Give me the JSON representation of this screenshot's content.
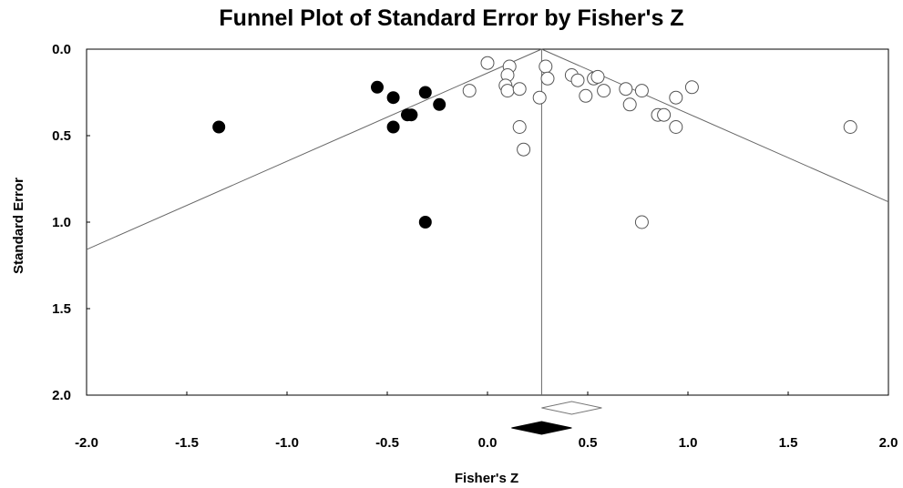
{
  "chart_data": {
    "type": "scatter",
    "title": "Funnel Plot of Standard Error by Fisher's Z",
    "xlabel": "Fisher's Z",
    "ylabel": "Standard Error",
    "xlim": [
      -2.0,
      2.0
    ],
    "ylim": [
      0.0,
      2.0
    ],
    "y_inverted": true,
    "x_ticks": [
      "-2.0",
      "-1.5",
      "-1.0",
      "-0.5",
      "0.0",
      "0.5",
      "1.0",
      "1.5",
      "2.0"
    ],
    "y_ticks": [
      "0.0",
      "0.5",
      "1.0",
      "1.5",
      "2.0"
    ],
    "grid": false,
    "pooled_effect": 0.27,
    "funnel_z": 1.96,
    "series": [
      {
        "marker": "open-circle",
        "points": [
          [
            0.0,
            0.08
          ],
          [
            -0.09,
            0.24
          ],
          [
            0.11,
            0.1
          ],
          [
            0.1,
            0.15
          ],
          [
            0.09,
            0.21
          ],
          [
            0.1,
            0.24
          ],
          [
            0.16,
            0.23
          ],
          [
            0.26,
            0.28
          ],
          [
            0.16,
            0.45
          ],
          [
            0.18,
            0.58
          ],
          [
            0.29,
            0.1
          ],
          [
            0.3,
            0.17
          ],
          [
            0.42,
            0.15
          ],
          [
            0.45,
            0.18
          ],
          [
            0.49,
            0.27
          ],
          [
            0.53,
            0.17
          ],
          [
            0.55,
            0.16
          ],
          [
            0.58,
            0.24
          ],
          [
            0.69,
            0.23
          ],
          [
            0.71,
            0.32
          ],
          [
            0.77,
            0.24
          ],
          [
            0.85,
            0.38
          ],
          [
            0.88,
            0.38
          ],
          [
            0.94,
            0.28
          ],
          [
            0.94,
            0.45
          ],
          [
            1.02,
            0.22
          ],
          [
            1.81,
            0.45
          ],
          [
            0.77,
            1.0
          ]
        ]
      },
      {
        "marker": "filled-circle",
        "points": [
          [
            -1.34,
            0.45
          ],
          [
            -0.55,
            0.22
          ],
          [
            -0.47,
            0.28
          ],
          [
            -0.31,
            0.25
          ],
          [
            -0.24,
            0.32
          ],
          [
            -0.4,
            0.38
          ],
          [
            -0.38,
            0.38
          ],
          [
            -0.47,
            0.45
          ],
          [
            -0.31,
            1.0
          ]
        ]
      }
    ],
    "summary_diamonds": [
      {
        "style": "open",
        "center": 0.42,
        "halfwidth": 0.15
      },
      {
        "style": "filled",
        "center": 0.27,
        "halfwidth": 0.15
      }
    ]
  }
}
